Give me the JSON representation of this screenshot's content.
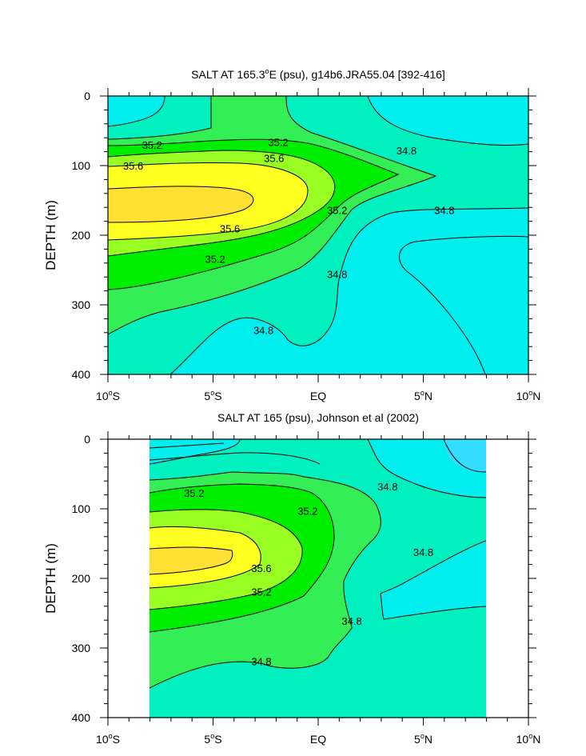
{
  "colors": {
    "lt_34_6": "#33ddff",
    "34_6_34_8": "#00eeee",
    "34_8_35_0": "#00f0c0",
    "35_0_35_2": "#33ee55",
    "35_2_35_4": "#00ee00",
    "35_4_35_6": "#99ff22",
    "35_6_35_8": "#ffff22",
    "gt_35_8": "#ffe033"
  },
  "chart_data": [
    {
      "type": "contour",
      "title_main": "SALT AT 165.3",
      "title_sup": "o",
      "title_rest": "E (psu), g14b6.JRA55.04 [392-416]",
      "ylabel": "DEPTH (m)",
      "xlim": [
        -10,
        10
      ],
      "ylim": [
        400,
        0
      ],
      "y_ticks": [
        "0",
        "100",
        "200",
        "300",
        "400"
      ],
      "x_ticks": [
        {
          "num": "10",
          "deg": "o",
          "dir": "S"
        },
        {
          "num": "5",
          "deg": "o",
          "dir": "S"
        },
        {
          "num": "EQ",
          "deg": "",
          "dir": ""
        },
        {
          "num": "5",
          "deg": "o",
          "dir": "N"
        },
        {
          "num": "10",
          "deg": "o",
          "dir": "N"
        }
      ],
      "contour_labels": [
        {
          "text": "35.2",
          "lat": -7.9,
          "depth": 70
        },
        {
          "text": "35.2",
          "lat": -1.9,
          "depth": 66
        },
        {
          "text": "34.8",
          "lat": 4.2,
          "depth": 78
        },
        {
          "text": "35.6",
          "lat": -8.8,
          "depth": 100
        },
        {
          "text": "35.6",
          "lat": -2.1,
          "depth": 89
        },
        {
          "text": "35.2",
          "lat": 0.9,
          "depth": 164
        },
        {
          "text": "34.8",
          "lat": 6.0,
          "depth": 164
        },
        {
          "text": "35.6",
          "lat": -4.2,
          "depth": 190
        },
        {
          "text": "35.2",
          "lat": -4.9,
          "depth": 234
        },
        {
          "text": "34.8",
          "lat": 0.9,
          "depth": 256
        },
        {
          "text": "34.8",
          "lat": -2.6,
          "depth": 336
        }
      ]
    },
    {
      "type": "contour",
      "title_main": "SALT AT 165 (psu), Johnson et al (2002)",
      "ylabel": "DEPTH (m)",
      "xlim": [
        -10,
        10
      ],
      "ylim": [
        400,
        0
      ],
      "data_lat_range": [
        -8,
        8
      ],
      "y_ticks": [
        "0",
        "100",
        "200",
        "300",
        "400"
      ],
      "x_ticks": [
        {
          "num": "10",
          "deg": "o",
          "dir": "S"
        },
        {
          "num": "5",
          "deg": "o",
          "dir": "S"
        },
        {
          "num": "EQ",
          "deg": "",
          "dir": ""
        },
        {
          "num": "5",
          "deg": "o",
          "dir": "N"
        },
        {
          "num": "10",
          "deg": "o",
          "dir": "N"
        }
      ],
      "contour_labels": [
        {
          "text": "35.2",
          "lat": -5.9,
          "depth": 77
        },
        {
          "text": "35.2",
          "lat": -0.5,
          "depth": 103
        },
        {
          "text": "34.8",
          "lat": 3.3,
          "depth": 68
        },
        {
          "text": "35.6",
          "lat": -2.7,
          "depth": 185
        },
        {
          "text": "34.8",
          "lat": 5.0,
          "depth": 162
        },
        {
          "text": "35.2",
          "lat": -2.7,
          "depth": 219
        },
        {
          "text": "34.8",
          "lat": 1.6,
          "depth": 261
        },
        {
          "text": "34.8",
          "lat": -2.7,
          "depth": 319
        }
      ]
    }
  ]
}
